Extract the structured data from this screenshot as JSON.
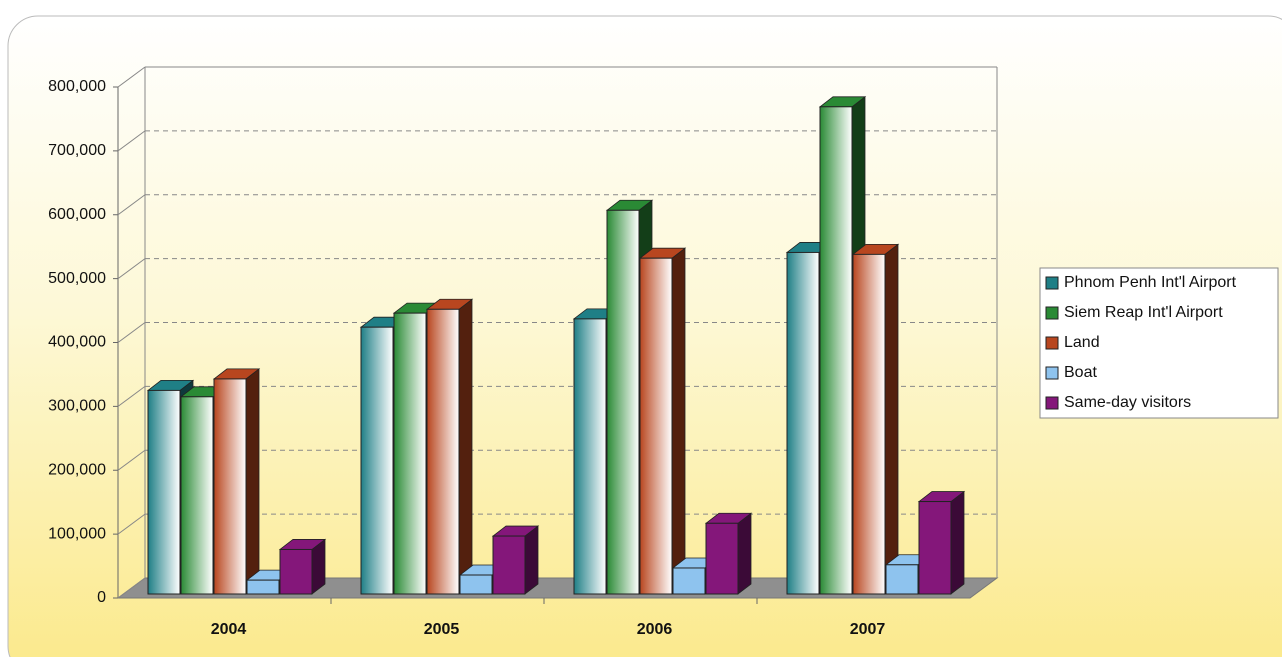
{
  "chart_data": {
    "type": "bar3d",
    "categories": [
      "2004",
      "2005",
      "2006",
      "2007"
    ],
    "series": [
      {
        "name": "Phnom Penh Int'l Airport",
        "color": "#1f7f86",
        "values": [
          325000,
          424000,
          437000,
          541000
        ]
      },
      {
        "name": "Siem Reap Int'l Airport",
        "color": "#2a8a35",
        "values": [
          315000,
          446000,
          607000,
          769000
        ]
      },
      {
        "name": "Land",
        "color": "#b8461f",
        "values": [
          343000,
          452000,
          532000,
          538000
        ]
      },
      {
        "name": "Boat",
        "color": "#8ec3ee",
        "values": [
          28000,
          36000,
          47000,
          52000
        ]
      },
      {
        "name": "Same-day visitors",
        "color": "#84177a",
        "values": [
          76000,
          97000,
          117000,
          151000
        ]
      }
    ],
    "ylim": [
      0,
      800000
    ],
    "yticks": [
      0,
      {
        "value": 100000,
        "label": "100,000"
      },
      {
        "value": 200000,
        "label": "200,000"
      },
      {
        "value": 300000,
        "label": "300,000"
      },
      {
        "value": 400000,
        "label": "400,000"
      },
      {
        "value": 500000,
        "label": "500,000"
      },
      {
        "value": 600000,
        "label": "600,000"
      },
      {
        "value": 700000,
        "label": "700,000"
      },
      {
        "value": 800000,
        "label": "800,000"
      }
    ],
    "grid": true,
    "legend": "right"
  }
}
